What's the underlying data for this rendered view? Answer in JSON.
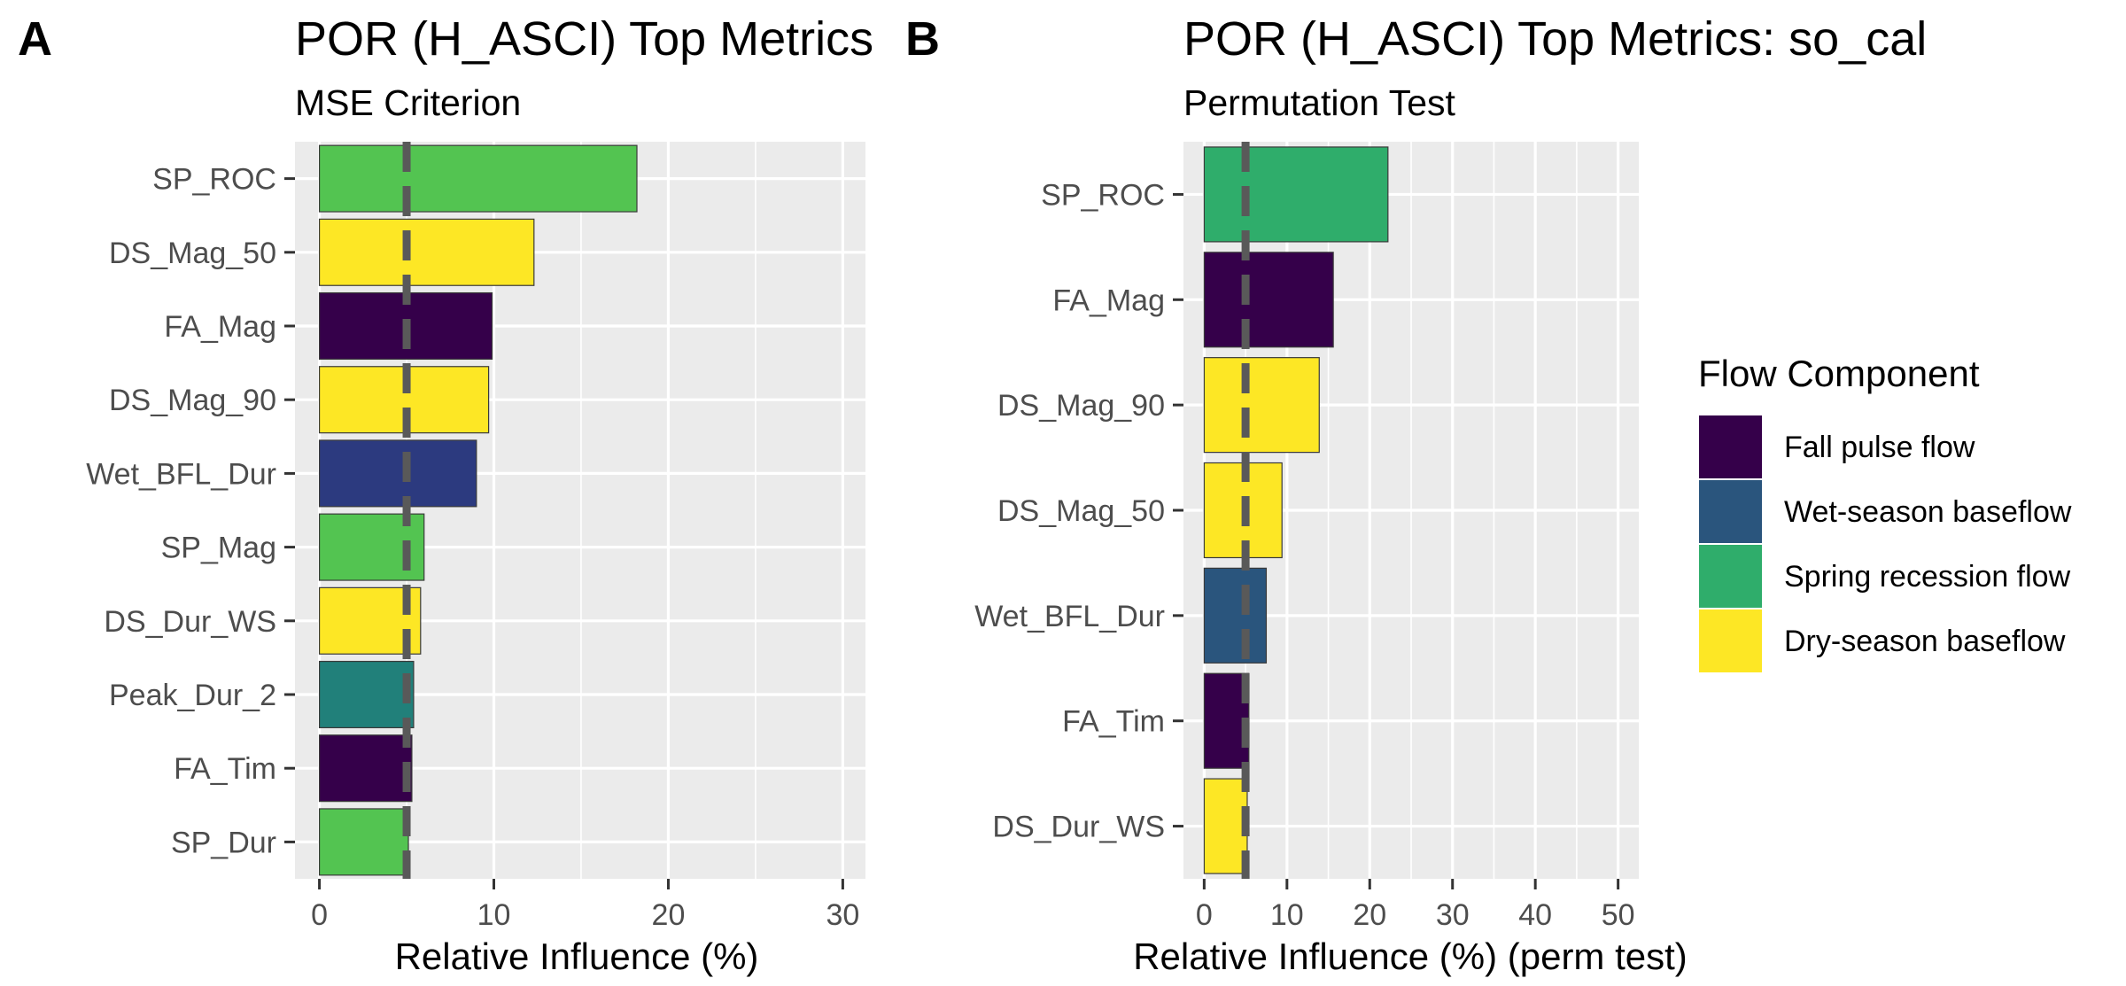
{
  "colors": {
    "Fall pulse flow": "#35004a",
    "Wet-season baseflow": "#2a557d",
    "Spring recession flow": "#2fad6b",
    "Dry-season baseflow": "#fde725",
    "teal": "#21807a",
    "light_green": "#53c451",
    "navy": "#2c3a7f",
    "panel_bg": "#ebebeb",
    "grid": "#ffffff",
    "reference_line": "#595959"
  },
  "chart_data": [
    {
      "type": "bar",
      "orientation": "horizontal",
      "panel_tag": "A",
      "title": "POR (H_ASCI) Top Metrics",
      "subtitle": "MSE Criterion",
      "xlabel": "Relative Influence (%)",
      "ylabel": "",
      "xlim": [
        -1.4,
        31.3
      ],
      "xticks": [
        0,
        10,
        20,
        30
      ],
      "reference_line_x": 5,
      "categories": [
        "SP_ROC",
        "DS_Mag_50",
        "FA_Mag",
        "DS_Mag_90",
        "Wet_BFL_Dur",
        "SP_Mag",
        "DS_Dur_WS",
        "Peak_Dur_2",
        "FA_Tim",
        "SP_Dur"
      ],
      "values": [
        18.2,
        12.3,
        9.9,
        9.7,
        9.0,
        6.0,
        5.8,
        5.4,
        5.3,
        5.1
      ],
      "bar_colors": [
        "light_green",
        "Dry-season baseflow",
        "Fall pulse flow",
        "Dry-season baseflow",
        "navy",
        "light_green",
        "Dry-season baseflow",
        "teal",
        "Fall pulse flow",
        "light_green"
      ]
    },
    {
      "type": "bar",
      "orientation": "horizontal",
      "panel_tag": "B",
      "title": "POR (H_ASCI) Top Metrics: so_cal",
      "subtitle": "Permutation Test",
      "xlabel": "Relative Influence (%) (perm test)",
      "ylabel": "",
      "xlim": [
        -2.5,
        52.5
      ],
      "xticks": [
        0,
        10,
        20,
        30,
        40,
        50
      ],
      "reference_line_x": 5,
      "categories": [
        "SP_ROC",
        "FA_Mag",
        "DS_Mag_90",
        "DS_Mag_50",
        "Wet_BFL_Dur",
        "FA_Tim",
        "DS_Dur_WS"
      ],
      "values": [
        22.2,
        15.6,
        13.9,
        9.4,
        7.5,
        5.4,
        5.2
      ],
      "bar_colors": [
        "Spring recession flow",
        "Fall pulse flow",
        "Dry-season baseflow",
        "Dry-season baseflow",
        "Wet-season baseflow",
        "Fall pulse flow",
        "Dry-season baseflow"
      ]
    }
  ],
  "legend": {
    "title": "Flow Component",
    "items": [
      {
        "label": "Fall pulse flow",
        "color": "#35004a"
      },
      {
        "label": "Wet-season baseflow",
        "color": "#2a557d"
      },
      {
        "label": "Spring recession flow",
        "color": "#2fad6b"
      },
      {
        "label": "Dry-season baseflow",
        "color": "#fde725"
      }
    ]
  }
}
